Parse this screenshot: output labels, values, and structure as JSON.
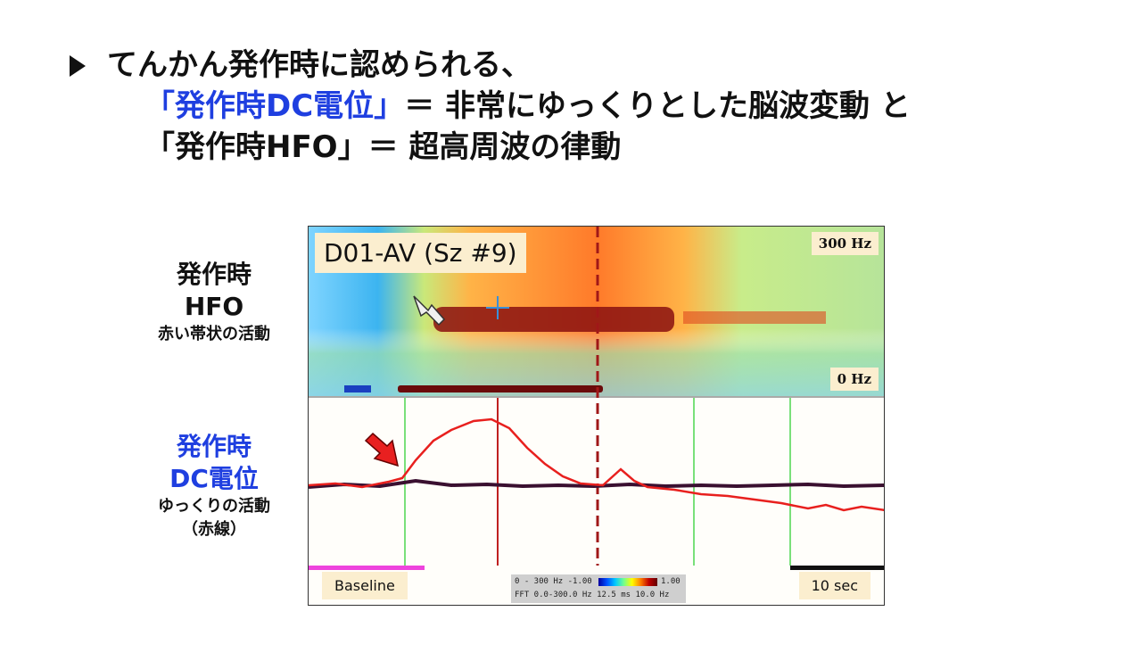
{
  "heading": {
    "line1": "てんかん発作時に認められる、",
    "line2_blue": "「発作時DC電位」",
    "line2_rest": "＝ 非常にゆっくりとした脳波変動 と",
    "line3": "「発作時HFO」＝ 超高周波の律動"
  },
  "labels": {
    "hfo": {
      "l1": "発作時",
      "l2": "HFO",
      "l3": "赤い帯状の活動"
    },
    "dc": {
      "l1": "発作時",
      "l2": "DC電位",
      "l3": "ゆっくりの活動",
      "l4": "（赤線）"
    }
  },
  "figure": {
    "title": "D01-AV (Sz #9)",
    "freq_top": "300 Hz",
    "freq_bottom": "0 Hz",
    "baseline": "Baseline",
    "timescale": "10 sec",
    "colorbar": {
      "row1": "0 - 300 Hz -1.00",
      "max": "1.00",
      "row2": "FFT  0.0-300.0 Hz  12.5 ms  10.0 Hz"
    }
  },
  "colors": {
    "accent_blue": "#1f3fe0",
    "dc_trace": "#e8201e",
    "raw_trace": "#3a1030",
    "baseline_bar": "#ee44dd"
  }
}
